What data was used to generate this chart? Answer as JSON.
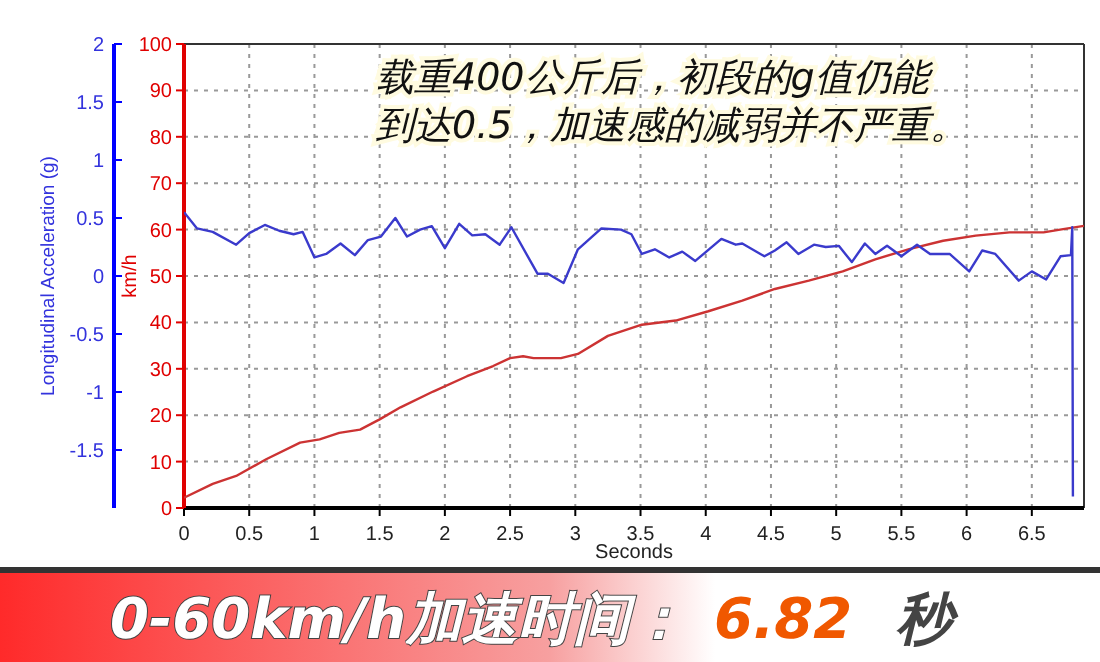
{
  "chart_data": {
    "type": "line",
    "xlabel": "Seconds",
    "ylabel": "km/h",
    "y2label": "Longitudinal Acceleration (g)",
    "xlim": [
      0,
      6.9
    ],
    "xticks": [
      0,
      0.5,
      1,
      1.5,
      2,
      2.5,
      3,
      3.5,
      4,
      4.5,
      5,
      5.5,
      6,
      6.5
    ],
    "ylim": [
      0,
      100
    ],
    "yticks": [
      0,
      10,
      20,
      30,
      40,
      50,
      60,
      70,
      80,
      90,
      100
    ],
    "y2lim": [
      -2,
      2
    ],
    "y2ticks": [
      -1.5,
      -1,
      -0.5,
      0,
      0.5,
      1,
      1.5,
      2
    ],
    "grid": true,
    "line_style": "solid",
    "annotations": [
      "载重400公斤后，初段的g值仍能",
      "到达0.5，加速感的减弱并不严重。",
      "0-60km/h加速时间：",
      "6.82",
      "秒"
    ],
    "series": [
      {
        "color": "#cc3333",
        "x": [
          0,
          0.22,
          0.4,
          0.63,
          0.89,
          1.04,
          1.19,
          1.35,
          1.5,
          1.66,
          1.91,
          2.17,
          2.37,
          2.5,
          2.6,
          2.68,
          2.89,
          3.02,
          3.25,
          3.51,
          3.77,
          4.02,
          4.28,
          4.53,
          4.79,
          5.05,
          5.3,
          5.56,
          5.82,
          6.07,
          6.33,
          6.59,
          6.74,
          6.9
        ],
        "values": [
          2.2,
          5.2,
          6.9,
          10.5,
          14.1,
          14.8,
          16.2,
          16.9,
          19.1,
          21.7,
          25.1,
          28.4,
          30.6,
          32.3,
          32.7,
          32.3,
          32.3,
          33.2,
          37.1,
          39.5,
          40.4,
          42.4,
          44.7,
          47.2,
          49,
          51,
          53.6,
          55.8,
          57.6,
          58.7,
          59.4,
          59.4,
          60.1,
          60.8
        ]
      },
      {
        "color": "#3a3acc",
        "axis": "y2",
        "x": [
          0,
          0.1,
          0.22,
          0.4,
          0.5,
          0.62,
          0.73,
          0.84,
          0.91,
          1.0,
          1.09,
          1.2,
          1.31,
          1.41,
          1.51,
          1.62,
          1.71,
          1.81,
          1.9,
          2.0,
          2.11,
          2.21,
          2.31,
          2.42,
          2.51,
          2.71,
          2.79,
          2.91,
          3.02,
          3.2,
          3.35,
          3.43,
          3.51,
          3.61,
          3.72,
          3.82,
          3.92,
          4.12,
          4.23,
          4.28,
          4.45,
          4.53,
          4.62,
          4.71,
          4.83,
          4.92,
          5.02,
          5.12,
          5.22,
          5.3,
          5.39,
          5.5,
          5.62,
          5.72,
          5.87,
          6.02,
          6.12,
          6.22,
          6.4,
          6.5,
          6.61,
          6.72,
          6.8,
          6.81,
          6.815
        ],
        "values": [
          0.55,
          0.41,
          0.38,
          0.27,
          0.37,
          0.44,
          0.39,
          0.36,
          0.38,
          0.16,
          0.19,
          0.28,
          0.18,
          0.31,
          0.34,
          0.5,
          0.34,
          0.4,
          0.43,
          0.24,
          0.45,
          0.35,
          0.36,
          0.27,
          0.42,
          0.02,
          0.02,
          -0.06,
          0.23,
          0.41,
          0.4,
          0.36,
          0.19,
          0.23,
          0.16,
          0.21,
          0.13,
          0.32,
          0.27,
          0.28,
          0.17,
          0.22,
          0.29,
          0.19,
          0.27,
          0.25,
          0.26,
          0.12,
          0.28,
          0.19,
          0.26,
          0.17,
          0.27,
          0.19,
          0.19,
          0.04,
          0.22,
          0.19,
          -0.04,
          0.04,
          -0.03,
          0.17,
          0.18,
          0.42,
          -1.9
        ]
      }
    ]
  }
}
